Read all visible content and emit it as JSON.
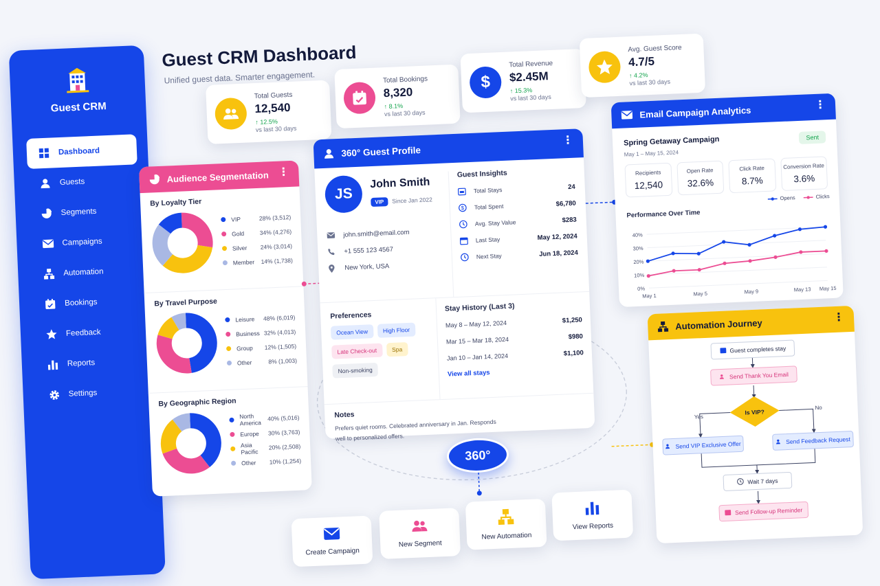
{
  "app": {
    "name": "Guest CRM"
  },
  "header": {
    "title": "Guest CRM Dashboard",
    "subtitle": "Unified guest data. Smarter engagement."
  },
  "sidebar": {
    "items": [
      {
        "label": "Dashboard",
        "icon": "grid-icon",
        "active": true
      },
      {
        "label": "Guests",
        "icon": "user-icon"
      },
      {
        "label": "Segments",
        "icon": "pie-icon"
      },
      {
        "label": "Campaigns",
        "icon": "mail-icon"
      },
      {
        "label": "Automation",
        "icon": "flow-icon"
      },
      {
        "label": "Bookings",
        "icon": "calendar-icon"
      },
      {
        "label": "Feedback",
        "icon": "star-icon"
      },
      {
        "label": "Reports",
        "icon": "bar-chart-icon"
      },
      {
        "label": "Settings",
        "icon": "gear-icon"
      }
    ]
  },
  "kpis": [
    {
      "label": "Total Guests",
      "value": "12,540",
      "delta": "↑ 12.5%",
      "period": "vs last 30 days",
      "color": "#f8c20e",
      "icon": "users-icon"
    },
    {
      "label": "Total Bookings",
      "value": "8,320",
      "delta": "↑ 8.1%",
      "period": "vs last 30 days",
      "color": "#ec4d93",
      "icon": "calendar-icon"
    },
    {
      "label": "Total Revenue",
      "value": "$2.45M",
      "delta": "↑ 15.3%",
      "period": "vs last 30 days",
      "color": "#1546e8",
      "icon": "dollar-icon"
    },
    {
      "label": "Avg. Guest Score",
      "value": "4.7/5",
      "delta": "↑ 4.2%",
      "period": "vs last 30 days",
      "color": "#f8c20e",
      "icon": "star-icon"
    }
  ],
  "segmentation": {
    "title": "Audience Segmentation",
    "sections": [
      {
        "title": "By Loyalty Tier",
        "items": [
          {
            "name": "VIP",
            "value": "28% (3,512)",
            "pct": 28,
            "color": "#ec4d93"
          },
          {
            "name": "Gold",
            "value": "34% (4,276)",
            "pct": 34,
            "color": "#f8c20e"
          },
          {
            "name": "Silver",
            "value": "24% (3,014)",
            "pct": 24,
            "color": "#a9b8e4"
          },
          {
            "name": "Member",
            "value": "14% (1,738)",
            "pct": 14,
            "color": "#1546e8"
          }
        ]
      },
      {
        "title": "By Travel Purpose",
        "items": [
          {
            "name": "Leisure",
            "value": "48% (6,019)",
            "pct": 48,
            "color": "#1546e8"
          },
          {
            "name": "Business",
            "value": "32% (4,013)",
            "pct": 32,
            "color": "#ec4d93"
          },
          {
            "name": "Group",
            "value": "12% (1,505)",
            "pct": 12,
            "color": "#f8c20e"
          },
          {
            "name": "Other",
            "value": "8% (1,003)",
            "pct": 8,
            "color": "#a9b8e4"
          }
        ]
      },
      {
        "title": "By Geographic Region",
        "items": [
          {
            "name": "North America",
            "value": "40% (5,016)",
            "pct": 40,
            "color": "#1546e8"
          },
          {
            "name": "Europe",
            "value": "30% (3,763)",
            "pct": 30,
            "color": "#ec4d93"
          },
          {
            "name": "Asia Pacific",
            "value": "20% (2,508)",
            "pct": 20,
            "color": "#f8c20e"
          },
          {
            "name": "Other",
            "value": "10% (1,254)",
            "pct": 10,
            "color": "#a9b8e4"
          }
        ]
      }
    ]
  },
  "profile": {
    "title": "360° Guest Profile",
    "initials": "JS",
    "name": "John Smith",
    "tier": "VIP",
    "since": "Since Jan 2022",
    "email": "john.smith@email.com",
    "phone": "+1 555 123 4567",
    "location": "New York, USA",
    "insights_title": "Guest Insights",
    "insights": [
      {
        "label": "Total Stays",
        "value": "24",
        "icon": "bed-icon"
      },
      {
        "label": "Total Spent",
        "value": "$6,780",
        "icon": "dollar-icon"
      },
      {
        "label": "Avg. Stay Value",
        "value": "$283",
        "icon": "clock-icon"
      },
      {
        "label": "Last Stay",
        "value": "May 12, 2024",
        "icon": "calendar-icon"
      },
      {
        "label": "Next Stay",
        "value": "Jun 18, 2024",
        "icon": "clock-icon"
      }
    ],
    "preferences_title": "Preferences",
    "preferences": [
      {
        "label": "Ocean View",
        "bg": "#e3ecff",
        "fg": "#1546e8"
      },
      {
        "label": "High Floor",
        "bg": "#e3ecff",
        "fg": "#1546e8"
      },
      {
        "label": "Late Check-out",
        "bg": "#fde4ef",
        "fg": "#d6337a"
      },
      {
        "label": "Spa",
        "bg": "#fff3cd",
        "fg": "#9a7200"
      },
      {
        "label": "Non-smoking",
        "bg": "#eef0f4",
        "fg": "#3b4262"
      }
    ],
    "history_title": "Stay History (Last 3)",
    "history": [
      {
        "dates": "May 8 – May 12, 2024",
        "amount": "$1,250"
      },
      {
        "dates": "Mar 15 – Mar 18, 2024",
        "amount": "$980"
      },
      {
        "dates": "Jan 10 – Jan 14, 2024",
        "amount": "$1,100"
      }
    ],
    "view_all": "View all stays",
    "notes_title": "Notes",
    "notes": "Prefers quiet rooms. Celebrated anniversary in Jan. Responds well to personalized offers."
  },
  "email": {
    "title": "Email Campaign Analytics",
    "status": "Sent",
    "campaign": "Spring Getaway Campaign",
    "dates": "May 1 – May 15, 2024",
    "metrics": [
      {
        "label": "Recipients",
        "value": "12,540"
      },
      {
        "label": "Open Rate",
        "value": "32.6%"
      },
      {
        "label": "Click Rate",
        "value": "8.7%"
      },
      {
        "label": "Conversion Rate",
        "value": "3.6%"
      }
    ],
    "perf_title": "Performance Over Time",
    "legend_opens": "Opens",
    "legend_clicks": "Clicks",
    "color_opens": "#1546e8",
    "color_clicks": "#ec4d93"
  },
  "chart_data": {
    "type": "line",
    "title": "Performance Over Time",
    "x": [
      "May 1",
      "May 3",
      "May 5",
      "May 7",
      "May 9",
      "May 11",
      "May 13",
      "May 15"
    ],
    "x_tick_labels": [
      "May 1",
      "May 5",
      "May 9",
      "May 13",
      "May 15"
    ],
    "y_tick_labels": [
      "0%",
      "10%",
      "20%",
      "30%",
      "40%"
    ],
    "ylim": [
      0,
      45
    ],
    "grid": true,
    "legend_position": "top-right",
    "series": [
      {
        "name": "Opens",
        "values": [
          20,
          25,
          24,
          32,
          29,
          35,
          39,
          40
        ]
      },
      {
        "name": "Clicks",
        "values": [
          9,
          12,
          12,
          16,
          17,
          19,
          22,
          22
        ]
      }
    ]
  },
  "automation": {
    "title": "Automation Journey",
    "start": "Guest completes stay",
    "thank": "Send Thank You Email",
    "decision": "Is VIP?",
    "yes": "Yes",
    "no": "No",
    "vip_offer": "Send VIP Exclusive Offer",
    "feedback": "Send Feedback Request",
    "wait": "Wait 7 days",
    "followup": "Send Follow-up Reminder"
  },
  "badge": "360°",
  "actions": [
    {
      "label": "Create Campaign",
      "icon": "mail-icon",
      "color": "#1546e8"
    },
    {
      "label": "New Segment",
      "icon": "users-icon",
      "color": "#ec4d93"
    },
    {
      "label": "New Automation",
      "icon": "flow-icon",
      "color": "#f8c20e"
    },
    {
      "label": "View Reports",
      "icon": "bar-chart-icon",
      "color": "#1546e8"
    }
  ]
}
